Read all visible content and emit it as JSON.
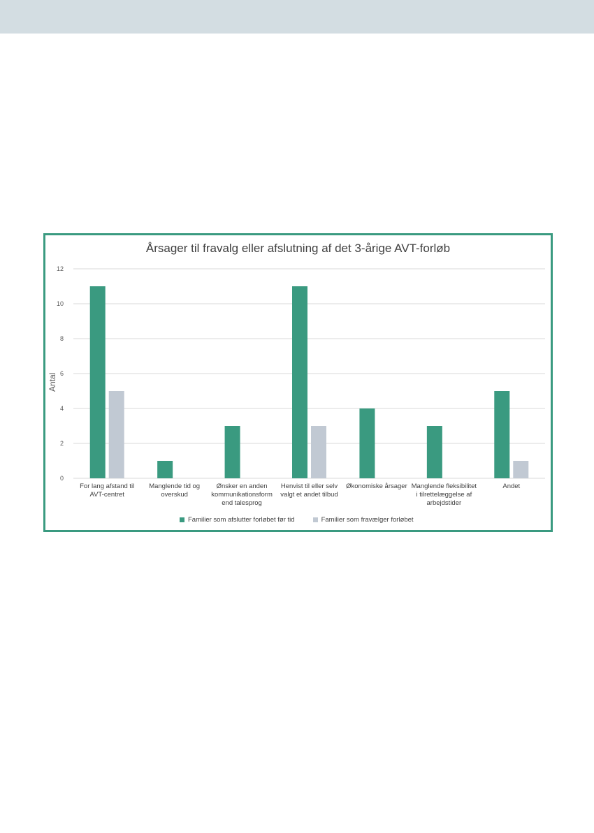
{
  "colors": {
    "series1": "#3a9a80",
    "series2": "#c1c9d3",
    "frame": "#3a9a80",
    "band": "#d3dde2"
  },
  "chart_data": {
    "type": "bar",
    "title": "Årsager til fravalg eller afslutning af det 3-årige AVT-forløb",
    "ylabel": "Antal",
    "xlabel": "",
    "ylim": [
      0,
      12
    ],
    "yticks": [
      "0",
      "2",
      "4",
      "6",
      "8",
      "10",
      "12"
    ],
    "grid": true,
    "legend_position": "bottom",
    "categories": [
      "For lang afstand til AVT-centret",
      "Manglende tid og overskud",
      "Ønsker en anden kommunikationsform end talesprog",
      "Henvist til eller selv valgt et andet tilbud",
      "Økonomiske årsager",
      "Manglende fleksibilitet i tilrettelæggelse af arbejdstider",
      "Andet"
    ],
    "series": [
      {
        "name": "Familier som afslutter forløbet før tid",
        "values": [
          11,
          1,
          3,
          11,
          4,
          3,
          5
        ]
      },
      {
        "name": "Familier som fravælger forløbet",
        "values": [
          5,
          0,
          0,
          3,
          0,
          0,
          1
        ]
      }
    ]
  }
}
